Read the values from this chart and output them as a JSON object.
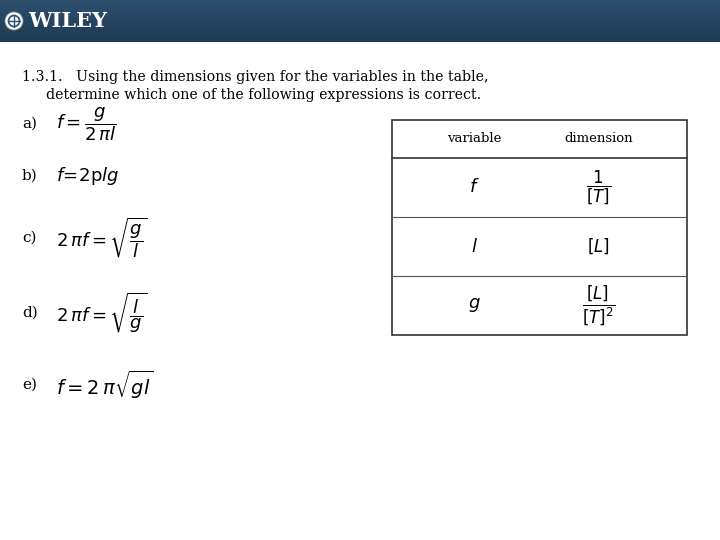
{
  "bg_color": "#ffffff",
  "header_bg_top": "#1e3a52",
  "header_bg_bottom": "#2d5070",
  "header_text": "WILEY",
  "header_text_color": "#ffffff",
  "title_line1": "1.3.1.   Using the dimensions given for the variables in the table,",
  "title_line2": "determine which one of the following expressions is correct.",
  "font_color": "#000000",
  "figw": 7.2,
  "figh": 5.4,
  "dpi": 100
}
